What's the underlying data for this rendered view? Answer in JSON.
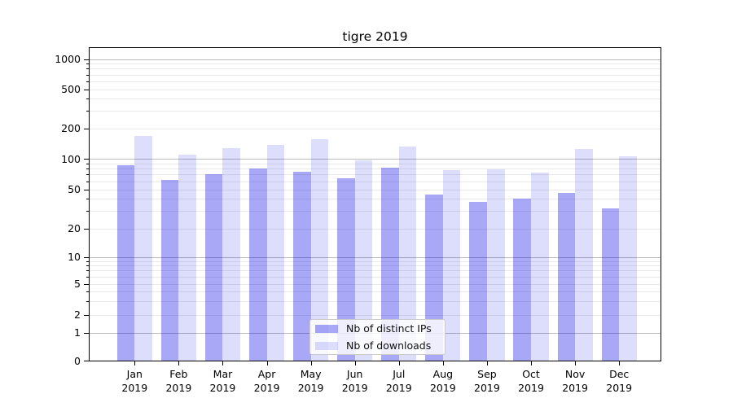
{
  "title": "tigre 2019",
  "legend": [
    {
      "label": "Nb of distinct IPs",
      "color_key": "bars_ips"
    },
    {
      "label": "Nb of downloads",
      "color_key": "bars_downloads"
    }
  ],
  "chart_data": {
    "type": "bar",
    "title": "tigre 2019",
    "months": [
      "Jan",
      "Feb",
      "Mar",
      "Apr",
      "May",
      "Jun",
      "Jul",
      "Aug",
      "Sep",
      "Oct",
      "Nov",
      "Dec"
    ],
    "year": "2019",
    "series": [
      {
        "name": "Nb of distinct IPs",
        "values": [
          87,
          62,
          71,
          80,
          74,
          64,
          82,
          44,
          37,
          40,
          46,
          32
        ]
      },
      {
        "name": "Nb of downloads",
        "values": [
          168,
          110,
          128,
          137,
          157,
          97,
          133,
          77,
          78,
          73,
          125,
          105
        ]
      }
    ],
    "yticks": [
      0,
      1,
      2,
      5,
      10,
      20,
      50,
      100,
      200,
      500,
      1000
    ],
    "yscale": "symlog",
    "ylim": [
      0,
      1290
    ],
    "xlabel": "",
    "ylabel": "",
    "grid": true,
    "legend_location": "lower center"
  },
  "colors": {
    "bars_ips": "rgba(0,0,230,0.34)",
    "bars_downloads": "rgba(0,0,230,0.135)",
    "grid_major": "#bbbbbb",
    "grid_minor": "#e9e9e9",
    "spine": "#000000",
    "legend_border": "#cccccc",
    "legend_bg": "rgba(255,255,255,0.8)",
    "text": "#000000"
  }
}
